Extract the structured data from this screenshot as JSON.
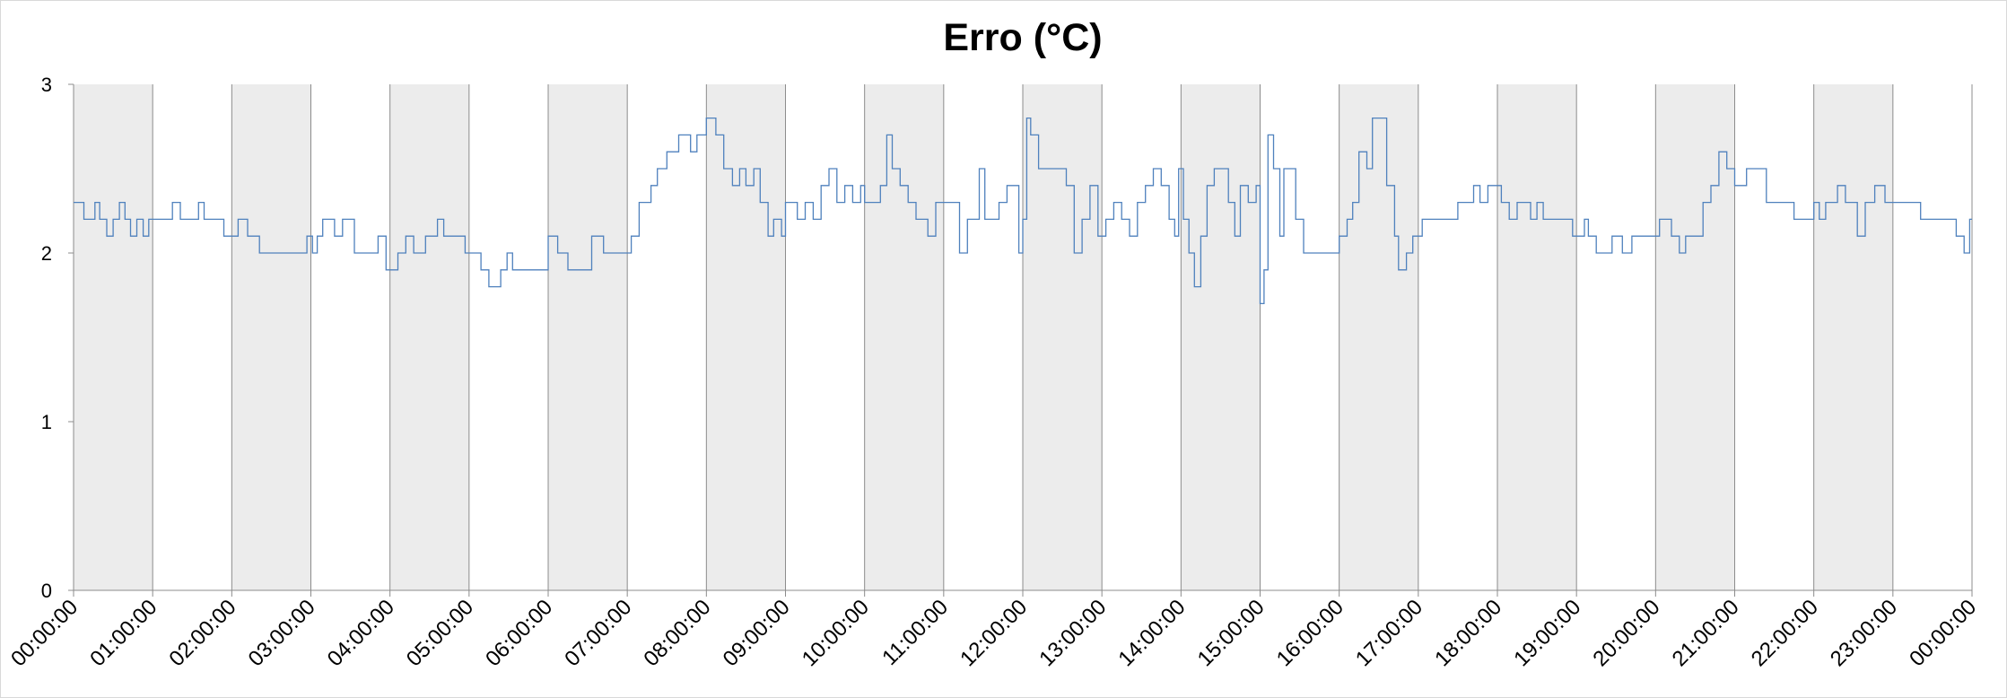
{
  "chart_data": {
    "type": "line",
    "title": "Erro (°C)",
    "xlabel": "",
    "ylabel": "",
    "ylim": [
      0,
      3
    ],
    "yticks": [
      "0",
      "1",
      "2",
      "3"
    ],
    "xticks": [
      "00:00:00",
      "01:00:00",
      "02:00:00",
      "03:00:00",
      "04:00:00",
      "05:00:00",
      "06:00:00",
      "07:00:00",
      "08:00:00",
      "09:00:00",
      "10:00:00",
      "11:00:00",
      "12:00:00",
      "13:00:00",
      "14:00:00",
      "15:00:00",
      "16:00:00",
      "17:00:00",
      "18:00:00",
      "19:00:00",
      "20:00:00",
      "21:00:00",
      "22:00:00",
      "23:00:00",
      "00:00:00"
    ],
    "shaded_bands": "alternating hours (00-01, 02-03, ..., 22-23)",
    "grid": "vertical lines at each hour",
    "legend": "none",
    "series": [
      {
        "color": "#4f81bd",
        "points": [
          [
            0,
            2.3
          ],
          [
            0.13,
            2.2
          ],
          [
            0.27,
            2.3
          ],
          [
            0.33,
            2.2
          ],
          [
            0.42,
            2.1
          ],
          [
            0.5,
            2.2
          ],
          [
            0.58,
            2.3
          ],
          [
            0.65,
            2.2
          ],
          [
            0.72,
            2.1
          ],
          [
            0.8,
            2.2
          ],
          [
            0.88,
            2.1
          ],
          [
            0.95,
            2.2
          ],
          [
            1.25,
            2.3
          ],
          [
            1.35,
            2.2
          ],
          [
            1.58,
            2.3
          ],
          [
            1.65,
            2.2
          ],
          [
            1.9,
            2.1
          ],
          [
            2.08,
            2.2
          ],
          [
            2.2,
            2.1
          ],
          [
            2.35,
            2.0
          ],
          [
            2.95,
            2.1
          ],
          [
            3.02,
            2.0
          ],
          [
            3.08,
            2.1
          ],
          [
            3.15,
            2.2
          ],
          [
            3.3,
            2.1
          ],
          [
            3.4,
            2.2
          ],
          [
            3.55,
            2.0
          ],
          [
            3.85,
            2.1
          ],
          [
            3.95,
            1.9
          ],
          [
            4.1,
            2.0
          ],
          [
            4.2,
            2.1
          ],
          [
            4.3,
            2.0
          ],
          [
            4.45,
            2.1
          ],
          [
            4.6,
            2.2
          ],
          [
            4.68,
            2.1
          ],
          [
            4.95,
            2.0
          ],
          [
            5.15,
            1.9
          ],
          [
            5.25,
            1.8
          ],
          [
            5.4,
            1.9
          ],
          [
            5.48,
            2.0
          ],
          [
            5.55,
            1.9
          ],
          [
            6.0,
            2.1
          ],
          [
            6.12,
            2.0
          ],
          [
            6.25,
            1.9
          ],
          [
            6.55,
            2.1
          ],
          [
            6.7,
            2.0
          ],
          [
            7.05,
            2.1
          ],
          [
            7.15,
            2.3
          ],
          [
            7.3,
            2.4
          ],
          [
            7.38,
            2.5
          ],
          [
            7.5,
            2.6
          ],
          [
            7.65,
            2.7
          ],
          [
            7.8,
            2.6
          ],
          [
            7.88,
            2.7
          ],
          [
            8.0,
            2.8
          ],
          [
            8.12,
            2.7
          ],
          [
            8.22,
            2.5
          ],
          [
            8.33,
            2.4
          ],
          [
            8.42,
            2.5
          ],
          [
            8.5,
            2.4
          ],
          [
            8.6,
            2.5
          ],
          [
            8.68,
            2.3
          ],
          [
            8.78,
            2.1
          ],
          [
            8.85,
            2.2
          ],
          [
            8.95,
            2.1
          ],
          [
            9.0,
            2.3
          ],
          [
            9.15,
            2.2
          ],
          [
            9.25,
            2.3
          ],
          [
            9.35,
            2.2
          ],
          [
            9.45,
            2.4
          ],
          [
            9.55,
            2.5
          ],
          [
            9.65,
            2.3
          ],
          [
            9.75,
            2.4
          ],
          [
            9.85,
            2.3
          ],
          [
            9.95,
            2.4
          ],
          [
            10.0,
            2.3
          ],
          [
            10.2,
            2.4
          ],
          [
            10.28,
            2.7
          ],
          [
            10.35,
            2.5
          ],
          [
            10.45,
            2.4
          ],
          [
            10.55,
            2.3
          ],
          [
            10.65,
            2.2
          ],
          [
            10.8,
            2.1
          ],
          [
            10.9,
            2.3
          ],
          [
            11.2,
            2.0
          ],
          [
            11.3,
            2.2
          ],
          [
            11.45,
            2.5
          ],
          [
            11.52,
            2.2
          ],
          [
            11.7,
            2.3
          ],
          [
            11.8,
            2.4
          ],
          [
            11.95,
            2.0
          ],
          [
            12.0,
            2.2
          ],
          [
            12.05,
            2.8
          ],
          [
            12.1,
            2.7
          ],
          [
            12.2,
            2.5
          ],
          [
            12.55,
            2.4
          ],
          [
            12.65,
            2.0
          ],
          [
            12.75,
            2.2
          ],
          [
            12.85,
            2.4
          ],
          [
            12.95,
            2.1
          ],
          [
            13.05,
            2.2
          ],
          [
            13.15,
            2.3
          ],
          [
            13.25,
            2.2
          ],
          [
            13.35,
            2.1
          ],
          [
            13.45,
            2.3
          ],
          [
            13.55,
            2.4
          ],
          [
            13.65,
            2.5
          ],
          [
            13.75,
            2.4
          ],
          [
            13.85,
            2.2
          ],
          [
            13.92,
            2.1
          ],
          [
            13.97,
            2.5
          ],
          [
            14.03,
            2.2
          ],
          [
            14.1,
            2.0
          ],
          [
            14.17,
            1.8
          ],
          [
            14.25,
            2.1
          ],
          [
            14.33,
            2.4
          ],
          [
            14.42,
            2.5
          ],
          [
            14.6,
            2.3
          ],
          [
            14.68,
            2.1
          ],
          [
            14.75,
            2.4
          ],
          [
            14.85,
            2.3
          ],
          [
            14.95,
            2.4
          ],
          [
            15.0,
            1.7
          ],
          [
            15.05,
            1.9
          ],
          [
            15.1,
            2.7
          ],
          [
            15.17,
            2.5
          ],
          [
            15.25,
            2.1
          ],
          [
            15.3,
            2.5
          ],
          [
            15.45,
            2.2
          ],
          [
            15.55,
            2.0
          ],
          [
            15.72,
            2.0
          ],
          [
            16.0,
            2.1
          ],
          [
            16.1,
            2.2
          ],
          [
            16.17,
            2.3
          ],
          [
            16.25,
            2.6
          ],
          [
            16.35,
            2.5
          ],
          [
            16.42,
            2.8
          ],
          [
            16.6,
            2.4
          ],
          [
            16.7,
            2.1
          ],
          [
            16.75,
            1.9
          ],
          [
            16.85,
            2.0
          ],
          [
            16.93,
            2.1
          ],
          [
            17.05,
            2.2
          ],
          [
            17.5,
            2.3
          ],
          [
            17.7,
            2.4
          ],
          [
            17.78,
            2.3
          ],
          [
            17.88,
            2.4
          ],
          [
            18.05,
            2.3
          ],
          [
            18.15,
            2.2
          ],
          [
            18.25,
            2.3
          ],
          [
            18.42,
            2.2
          ],
          [
            18.5,
            2.3
          ],
          [
            18.58,
            2.2
          ],
          [
            18.95,
            2.1
          ],
          [
            19.1,
            2.2
          ],
          [
            19.15,
            2.1
          ],
          [
            19.25,
            2.0
          ],
          [
            19.45,
            2.1
          ],
          [
            19.58,
            2.0
          ],
          [
            19.7,
            2.1
          ],
          [
            20.05,
            2.2
          ],
          [
            20.2,
            2.1
          ],
          [
            20.3,
            2.0
          ],
          [
            20.38,
            2.1
          ],
          [
            20.6,
            2.3
          ],
          [
            20.7,
            2.4
          ],
          [
            20.8,
            2.6
          ],
          [
            20.9,
            2.5
          ],
          [
            21.0,
            2.4
          ],
          [
            21.15,
            2.5
          ],
          [
            21.4,
            2.3
          ],
          [
            21.75,
            2.2
          ],
          [
            22.0,
            2.3
          ],
          [
            22.07,
            2.2
          ],
          [
            22.15,
            2.3
          ],
          [
            22.3,
            2.4
          ],
          [
            22.4,
            2.3
          ],
          [
            22.55,
            2.1
          ],
          [
            22.65,
            2.3
          ],
          [
            22.77,
            2.4
          ],
          [
            22.9,
            2.3
          ],
          [
            23.35,
            2.2
          ],
          [
            23.8,
            2.1
          ],
          [
            23.9,
            2.0
          ],
          [
            23.97,
            2.2
          ],
          [
            24.0,
            2.2
          ]
        ]
      }
    ]
  }
}
